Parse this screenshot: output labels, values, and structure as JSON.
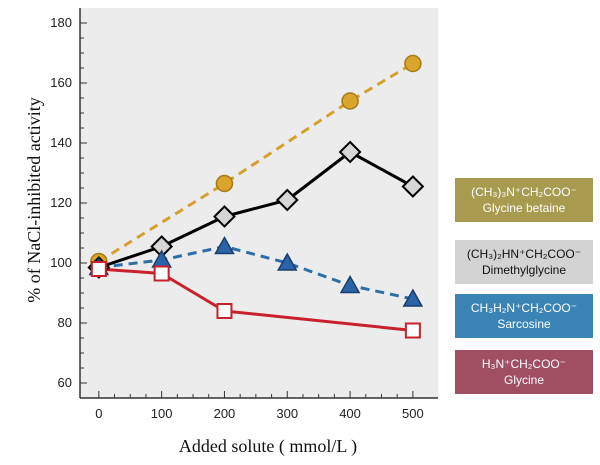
{
  "chart_data": {
    "type": "line",
    "xlabel": "Added solute ( mmol/L )",
    "ylabel": "% of NaCl-inhibited activity",
    "xlim": [
      -30,
      540
    ],
    "ylim": [
      55,
      185
    ],
    "xticks": [
      "0",
      "100",
      "200",
      "300",
      "400",
      "500"
    ],
    "yticks": [
      "60",
      "80",
      "100",
      "120",
      "140",
      "160",
      "180"
    ],
    "grid": false,
    "legend_position": "right",
    "series": [
      {
        "name": "Glycine betaine",
        "formula_main": "(CH₃)₃N⁺CH₂COO⁻",
        "x": [
          0,
          200,
          400,
          500
        ],
        "y": [
          100.5,
          126.5,
          154,
          166.5
        ],
        "color": "#d4a22c",
        "marker": "circle",
        "line": "dashed"
      },
      {
        "name": "Dimethylglycine",
        "formula_main": "(CH₃)₂HN⁺CH₂COO⁻",
        "x": [
          0,
          100,
          200,
          300,
          400,
          500
        ],
        "y": [
          98.5,
          105.5,
          115.5,
          121,
          137,
          125.5
        ],
        "color": "#000000",
        "marker": "diamond",
        "line": "solid"
      },
      {
        "name": "Sarcosine",
        "formula_main": "CH₃H₂N⁺CH₂COO⁻",
        "x": [
          0,
          100,
          200,
          300,
          400,
          500
        ],
        "y": [
          98.5,
          101,
          105.5,
          100,
          92.5,
          88
        ],
        "color": "#2e6ea8",
        "marker": "triangle",
        "line": "dashed"
      },
      {
        "name": "Glycine",
        "formula_main": "H₃N⁺CH₂COO⁻",
        "x": [
          0,
          100,
          200,
          500
        ],
        "y": [
          98,
          96.5,
          84,
          77.5
        ],
        "color": "#c8212b",
        "marker": "square",
        "line": "solid"
      }
    ]
  }
}
